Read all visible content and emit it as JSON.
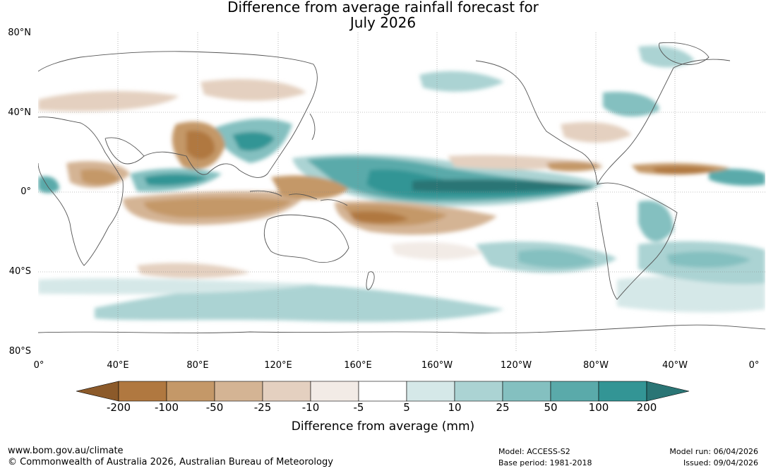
{
  "title": {
    "line1": "Difference from average rainfall forecast for",
    "line2": "July 2026"
  },
  "map": {
    "latitude_labels": [
      "80°N",
      "40°N",
      "0°",
      "40°S",
      "80°S"
    ],
    "longitude_labels": [
      "0°",
      "40°E",
      "80°E",
      "120°E",
      "160°E",
      "160°W",
      "120°W",
      "80°W",
      "40°W",
      "0°"
    ],
    "projection": "equirectangular, 0°E to 360°E, 80°S to 80°N"
  },
  "legend": {
    "tick_labels": [
      "-200",
      "-100",
      "-50",
      "-25",
      "-10",
      "-5",
      "5",
      "10",
      "25",
      "50",
      "100",
      "200"
    ],
    "bins": [
      {
        "range": "< -200",
        "color": "#8c5a2a"
      },
      {
        "range": "-200 to -100",
        "color": "#b07840"
      },
      {
        "range": "-100 to -50",
        "color": "#c49868"
      },
      {
        "range": "-50 to -25",
        "color": "#d4b494"
      },
      {
        "range": "-25 to -10",
        "color": "#e4d0c0"
      },
      {
        "range": "-10 to -5",
        "color": "#f2ebe6"
      },
      {
        "range": "-5 to 5",
        "color": "#ffffff"
      },
      {
        "range": "5 to 10",
        "color": "#d5e8e8"
      },
      {
        "range": "10 to 25",
        "color": "#abd3d3"
      },
      {
        "range": "25 to 50",
        "color": "#84c0c0"
      },
      {
        "range": "50 to 100",
        "color": "#5aaaaa"
      },
      {
        "range": "100 to 200",
        "color": "#339595"
      },
      {
        "range": "> 200",
        "color": "#2a7575"
      }
    ],
    "axis_label": "Difference from average (mm)"
  },
  "footer": {
    "url": "www.bom.gov.au/climate",
    "copyright": "© Commonwealth of Australia 2026, Australian Bureau of Meteorology",
    "model": "Model: ACCESS-S2",
    "base_period": "Base period: 1981-2018",
    "model_run": "Model run: 06/04/2026",
    "issued": "Issued: 09/04/2026"
  }
}
